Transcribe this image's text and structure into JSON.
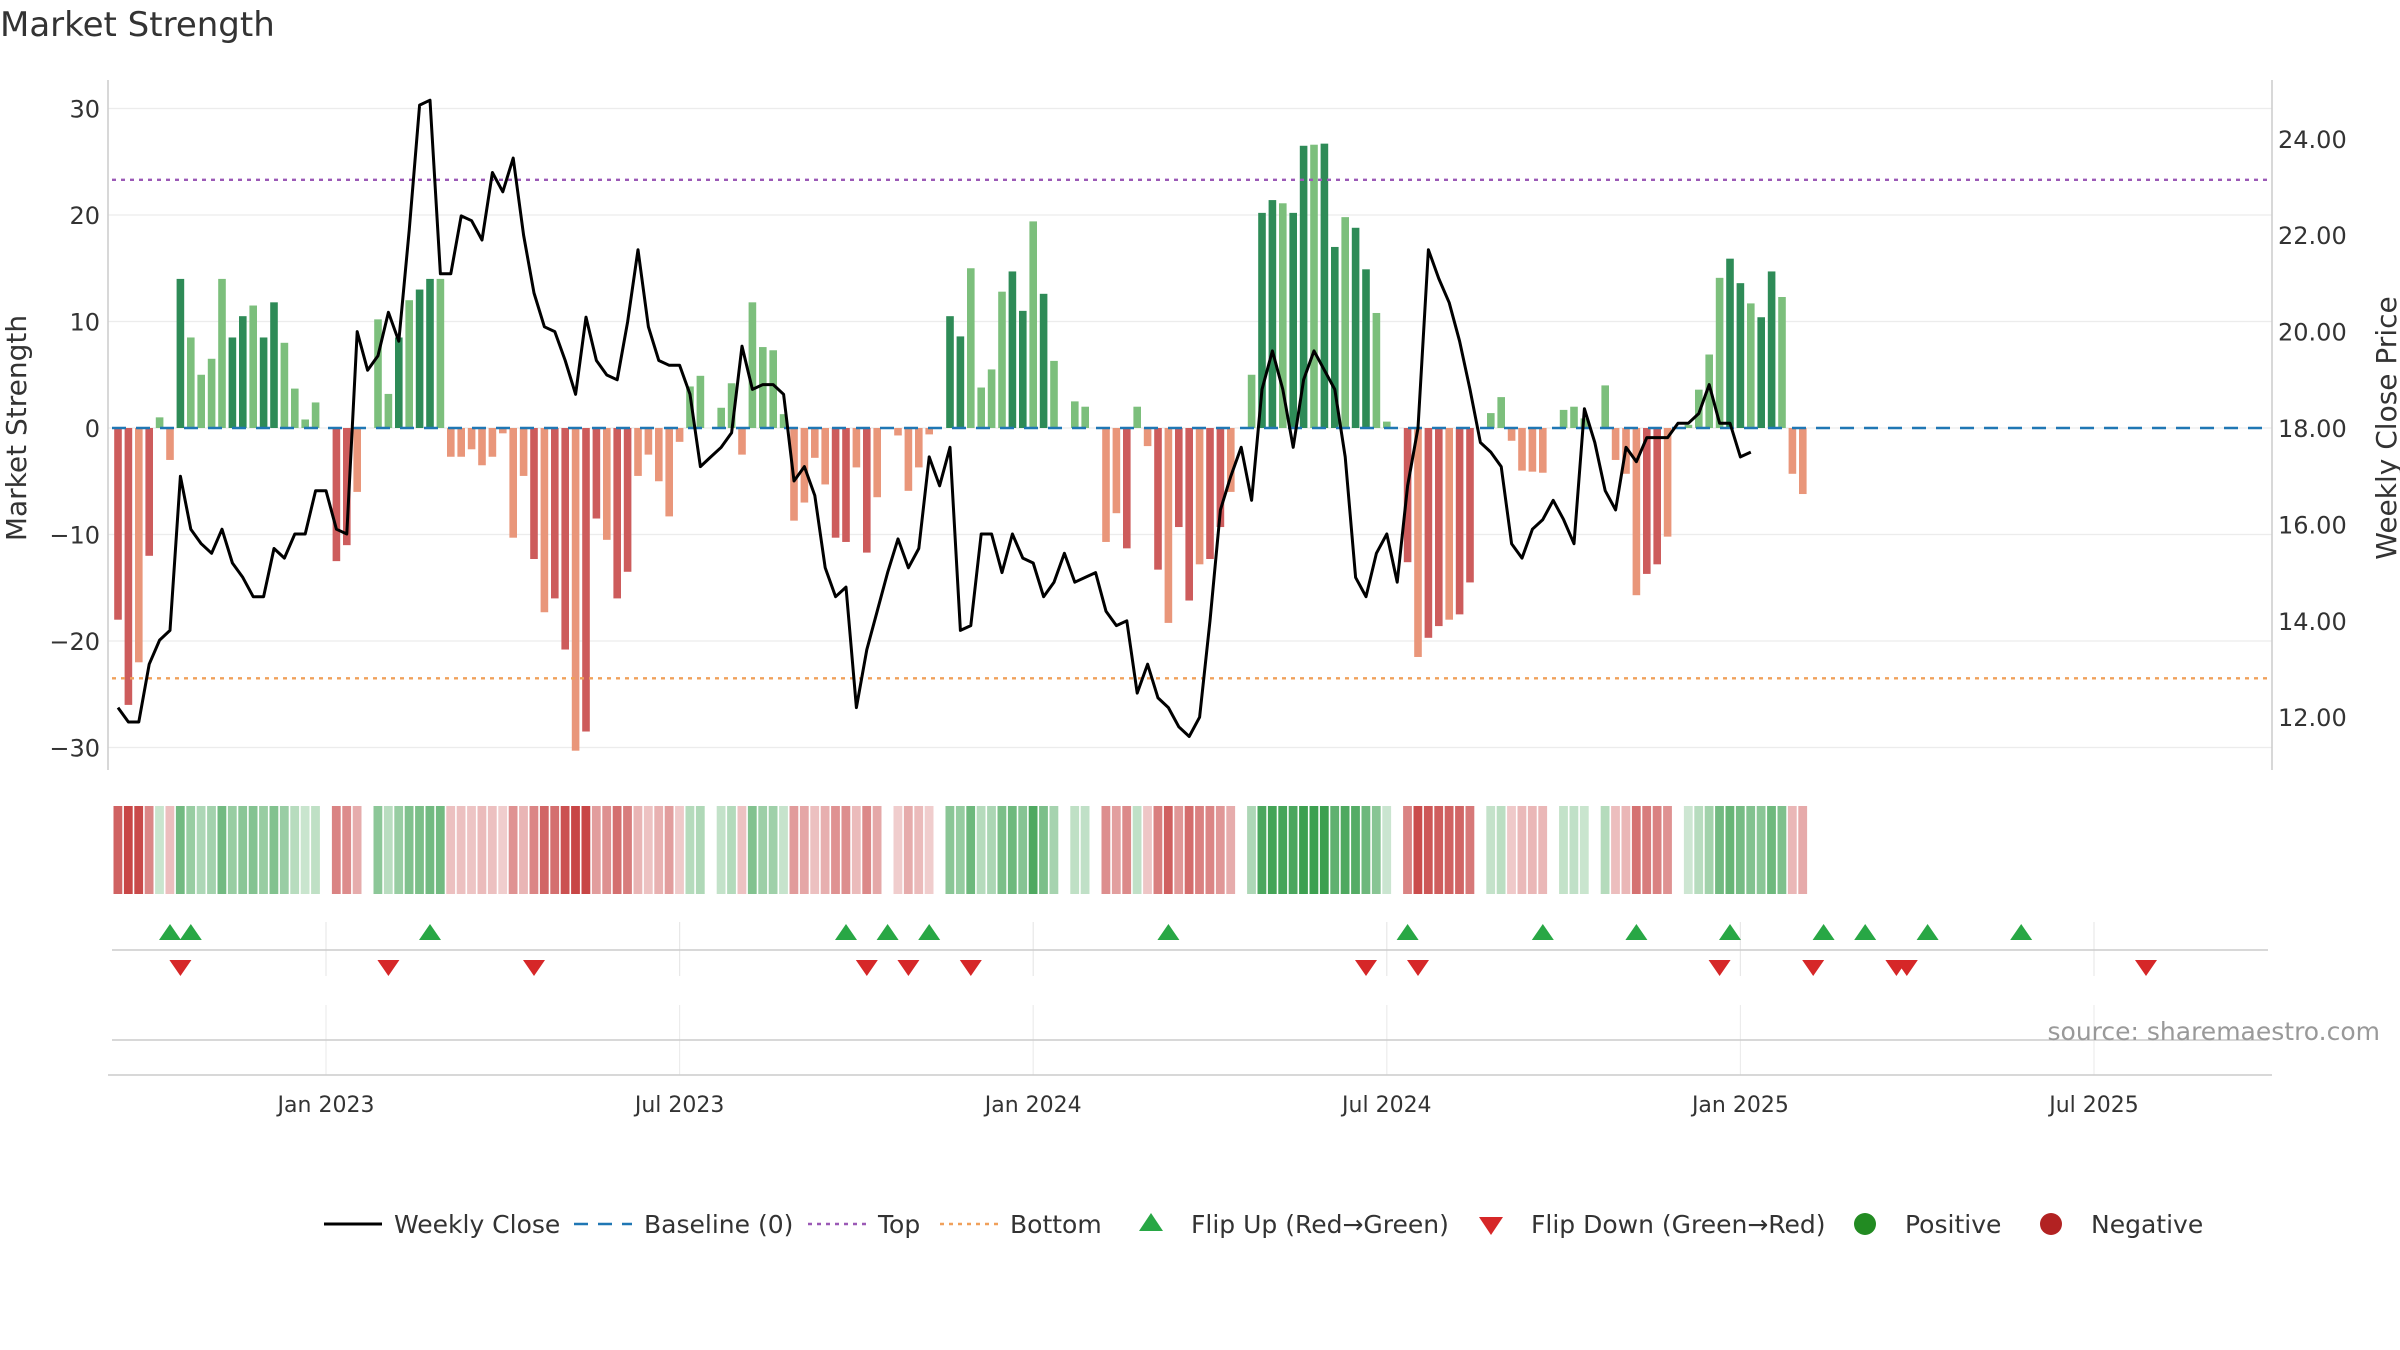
{
  "chart_data": {
    "type": "bar",
    "title": "Market Strength",
    "ylabel_left": "Market Strength",
    "ylabel_right": "Weekly Close Price",
    "source": "source: sharemaestro.com",
    "left_ylim": [
      -32,
      33
    ],
    "right_ylim": [
      11.0,
      25.0
    ],
    "left_ticks": [
      "30",
      "20",
      "10",
      "0",
      "−10",
      "−20",
      "−30"
    ],
    "left_tick_values": [
      30,
      20,
      10,
      0,
      -10,
      -20,
      -30
    ],
    "right_ticks": [
      "24.00",
      "22.00",
      "20.00",
      "18.00",
      "16.00",
      "14.00",
      "12.00"
    ],
    "right_tick_values": [
      24,
      22,
      20,
      18,
      16,
      14,
      12
    ],
    "x_ticks": [
      {
        "label": "Jan 2023",
        "week": 20
      },
      {
        "label": "Jul 2023",
        "week": 54
      },
      {
        "label": "Jan 2024",
        "week": 88
      },
      {
        "label": "Jul 2024",
        "week": 122
      },
      {
        "label": "Jan 2025",
        "week": 156
      },
      {
        "label": "Jul 2025",
        "week": 190
      }
    ],
    "top_level": 23.3,
    "bottom_level": -23.5,
    "baseline": 0,
    "strength": [
      -18,
      -26,
      -22,
      -12,
      1,
      -3,
      14,
      8.5,
      5,
      6.5,
      14,
      8.5,
      10.5,
      11.5,
      8.5,
      11.8,
      8,
      3.7,
      0.8,
      2.4,
      0,
      -12.5,
      -11,
      -6,
      0,
      10.2,
      3.2,
      8.5,
      12,
      13,
      14,
      14,
      -2.7,
      -2.7,
      -2,
      -3.5,
      -2.7,
      -0.5,
      -10.3,
      -4.5,
      -12.3,
      -17.3,
      -16,
      -20.8,
      -30.3,
      -28.5,
      -8.5,
      -10.5,
      -16,
      -13.5,
      -4.5,
      -2.5,
      -5,
      -8.3,
      -1.3,
      3.9,
      4.9,
      0,
      1.9,
      4.2,
      -2.5,
      11.8,
      7.6,
      7.3,
      1.3,
      -8.7,
      -7,
      -2.8,
      -5.3,
      -10.3,
      -10.7,
      -3.7,
      -11.7,
      -6.5,
      0,
      -0.7,
      -5.9,
      -3.7,
      -0.6,
      0,
      10.5,
      8.6,
      15,
      3.8,
      5.5,
      12.8,
      14.7,
      11,
      19.4,
      12.6,
      6.3,
      0,
      2.5,
      2,
      0,
      -10.7,
      -8,
      -11.3,
      2,
      -1.7,
      -13.3,
      -18.3,
      -9.3,
      -16.2,
      -12.8,
      -12.3,
      -9.3,
      -6,
      0,
      5,
      20.2,
      21.4,
      21.1,
      20.2,
      26.5,
      26.6,
      26.7,
      17,
      19.8,
      18.8,
      14.9,
      10.8,
      0.6,
      0,
      -12.6,
      -21.5,
      -19.7,
      -18.6,
      -18,
      -17.5,
      -14.5,
      0,
      1.4,
      2.9,
      -1.2,
      -4,
      -4.1,
      -4.2,
      0,
      1.7,
      2,
      0.9,
      0,
      4,
      -3,
      -4.3,
      -15.7,
      -13.7,
      -12.8,
      -10.2,
      0,
      0.3,
      3.6,
      6.9,
      14.1,
      15.9,
      13.6,
      11.7,
      10.4,
      14.7,
      12.3,
      -4.3,
      -6.2
    ],
    "close": [
      12.2,
      11.9,
      11.9,
      13.1,
      13.6,
      13.8,
      17.0,
      15.9,
      15.6,
      15.4,
      15.9,
      15.2,
      14.9,
      14.5,
      14.5,
      15.5,
      15.3,
      15.8,
      15.8,
      16.7,
      16.7,
      15.9,
      15.8,
      20.0,
      19.2,
      19.5,
      20.4,
      19.8,
      22.1,
      24.7,
      24.8,
      21.2,
      21.2,
      22.4,
      22.3,
      21.9,
      23.3,
      22.9,
      23.6,
      22.0,
      20.8,
      20.1,
      20.0,
      19.4,
      18.7,
      20.3,
      19.4,
      19.1,
      19.0,
      20.2,
      21.7,
      20.1,
      19.4,
      19.3,
      19.3,
      18.7,
      17.2,
      17.4,
      17.6,
      17.9,
      19.7,
      18.8,
      18.9,
      18.9,
      18.7,
      16.9,
      17.2,
      16.6,
      15.1,
      14.5,
      14.7,
      12.2,
      13.4,
      14.2,
      15.0,
      15.7,
      15.1,
      15.5,
      17.4,
      16.8,
      17.6,
      13.8,
      13.9,
      15.8,
      15.8,
      15.0,
      15.8,
      15.3,
      15.2,
      14.5,
      14.8,
      15.4,
      14.8,
      14.9,
      15.0,
      14.2,
      13.9,
      14.0,
      12.5,
      13.1,
      12.4,
      12.2,
      11.8,
      11.6,
      12.0,
      14.0,
      16.3,
      17.0,
      17.6,
      16.5,
      18.8,
      19.6,
      18.8,
      17.6,
      19.0,
      19.6,
      19.2,
      18.8,
      17.4,
      14.9,
      14.5,
      15.4,
      15.8,
      14.8,
      16.8,
      18.0,
      21.7,
      21.1,
      20.6,
      19.8,
      18.8,
      17.7,
      17.5,
      17.2,
      15.6,
      15.3,
      15.9,
      16.1,
      16.5,
      16.1,
      15.6,
      18.4,
      17.7,
      16.7,
      16.3,
      17.6,
      17.3,
      17.8,
      17.8,
      17.8,
      18.1,
      18.1,
      18.3,
      18.9,
      18.1,
      18.1,
      17.4,
      17.5
    ],
    "flip_up_weeks": [
      5,
      7,
      30,
      70,
      74,
      78,
      101,
      124,
      137,
      146,
      155,
      164,
      168,
      174,
      183
    ],
    "flip_down_weeks": [
      6,
      26,
      40,
      72,
      76,
      82,
      120,
      125,
      154,
      163,
      171,
      172,
      195
    ],
    "legend": [
      "Weekly Close",
      "Baseline (0)",
      "Top",
      "Bottom",
      "Flip Up (Red→Green)",
      "Flip Down (Green→Red)",
      "Positive",
      "Negative"
    ],
    "colors": {
      "pos_dark": "#2e8b57",
      "pos_light": "#7cbf7c",
      "neg_dark": "#cd5c5c",
      "neg_light": "#e9967a",
      "close_line": "#000000",
      "baseline": "#1f77b4",
      "top": "#9b59b6",
      "bottom": "#f0a05a",
      "flip_up": "#28a745",
      "flip_down": "#d62728",
      "positive_dot": "#228b22",
      "negative_dot": "#b22222"
    }
  }
}
